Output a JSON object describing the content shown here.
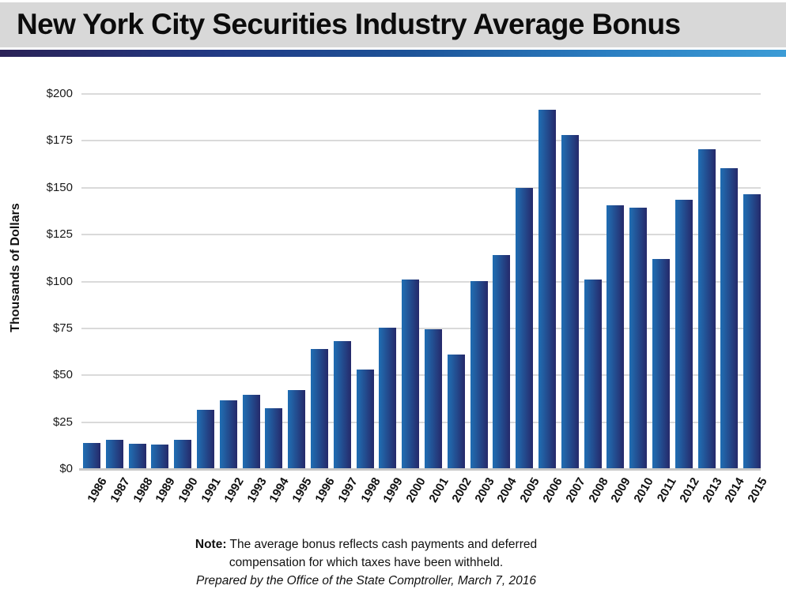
{
  "header": {
    "title": "New York City Securities Industry Average Bonus"
  },
  "chart_data": {
    "type": "bar",
    "title": "New York City Securities Industry Average Bonus",
    "xlabel": "",
    "ylabel": "Thousands of Dollars",
    "ylim": [
      0,
      200
    ],
    "ytick_step": 25,
    "yticks": [
      0,
      25,
      50,
      75,
      100,
      125,
      150,
      175,
      200
    ],
    "ytick_prefix": "$",
    "grid": true,
    "legend": "none",
    "bar_color_left": "#1d6cb3",
    "bar_color_right": "#25296a",
    "categories": [
      "1986",
      "1987",
      "1988",
      "1989",
      "1990",
      "1991",
      "1992",
      "1993",
      "1994",
      "1995",
      "1996",
      "1997",
      "1998",
      "1999",
      "2000",
      "2001",
      "2002",
      "2003",
      "2004",
      "2005",
      "2006",
      "2007",
      "2008",
      "2009",
      "2010",
      "2011",
      "2012",
      "2013",
      "2014",
      "2015"
    ],
    "values": [
      14,
      15.5,
      13.5,
      13,
      15.5,
      31.5,
      36.5,
      39.5,
      32.5,
      42,
      64,
      68,
      53,
      75.5,
      101,
      74.5,
      61,
      100,
      114,
      150,
      191.5,
      178,
      101,
      140.5,
      139.5,
      112,
      143.5,
      170.5,
      160.5,
      146.5
    ]
  },
  "note": {
    "label": "Note:",
    "line1": "The average bonus reflects cash payments and deferred",
    "line2": "compensation for which taxes have been withheld.",
    "prepared": "Prepared by the Office of the State Comptroller, March 7, 2016"
  }
}
